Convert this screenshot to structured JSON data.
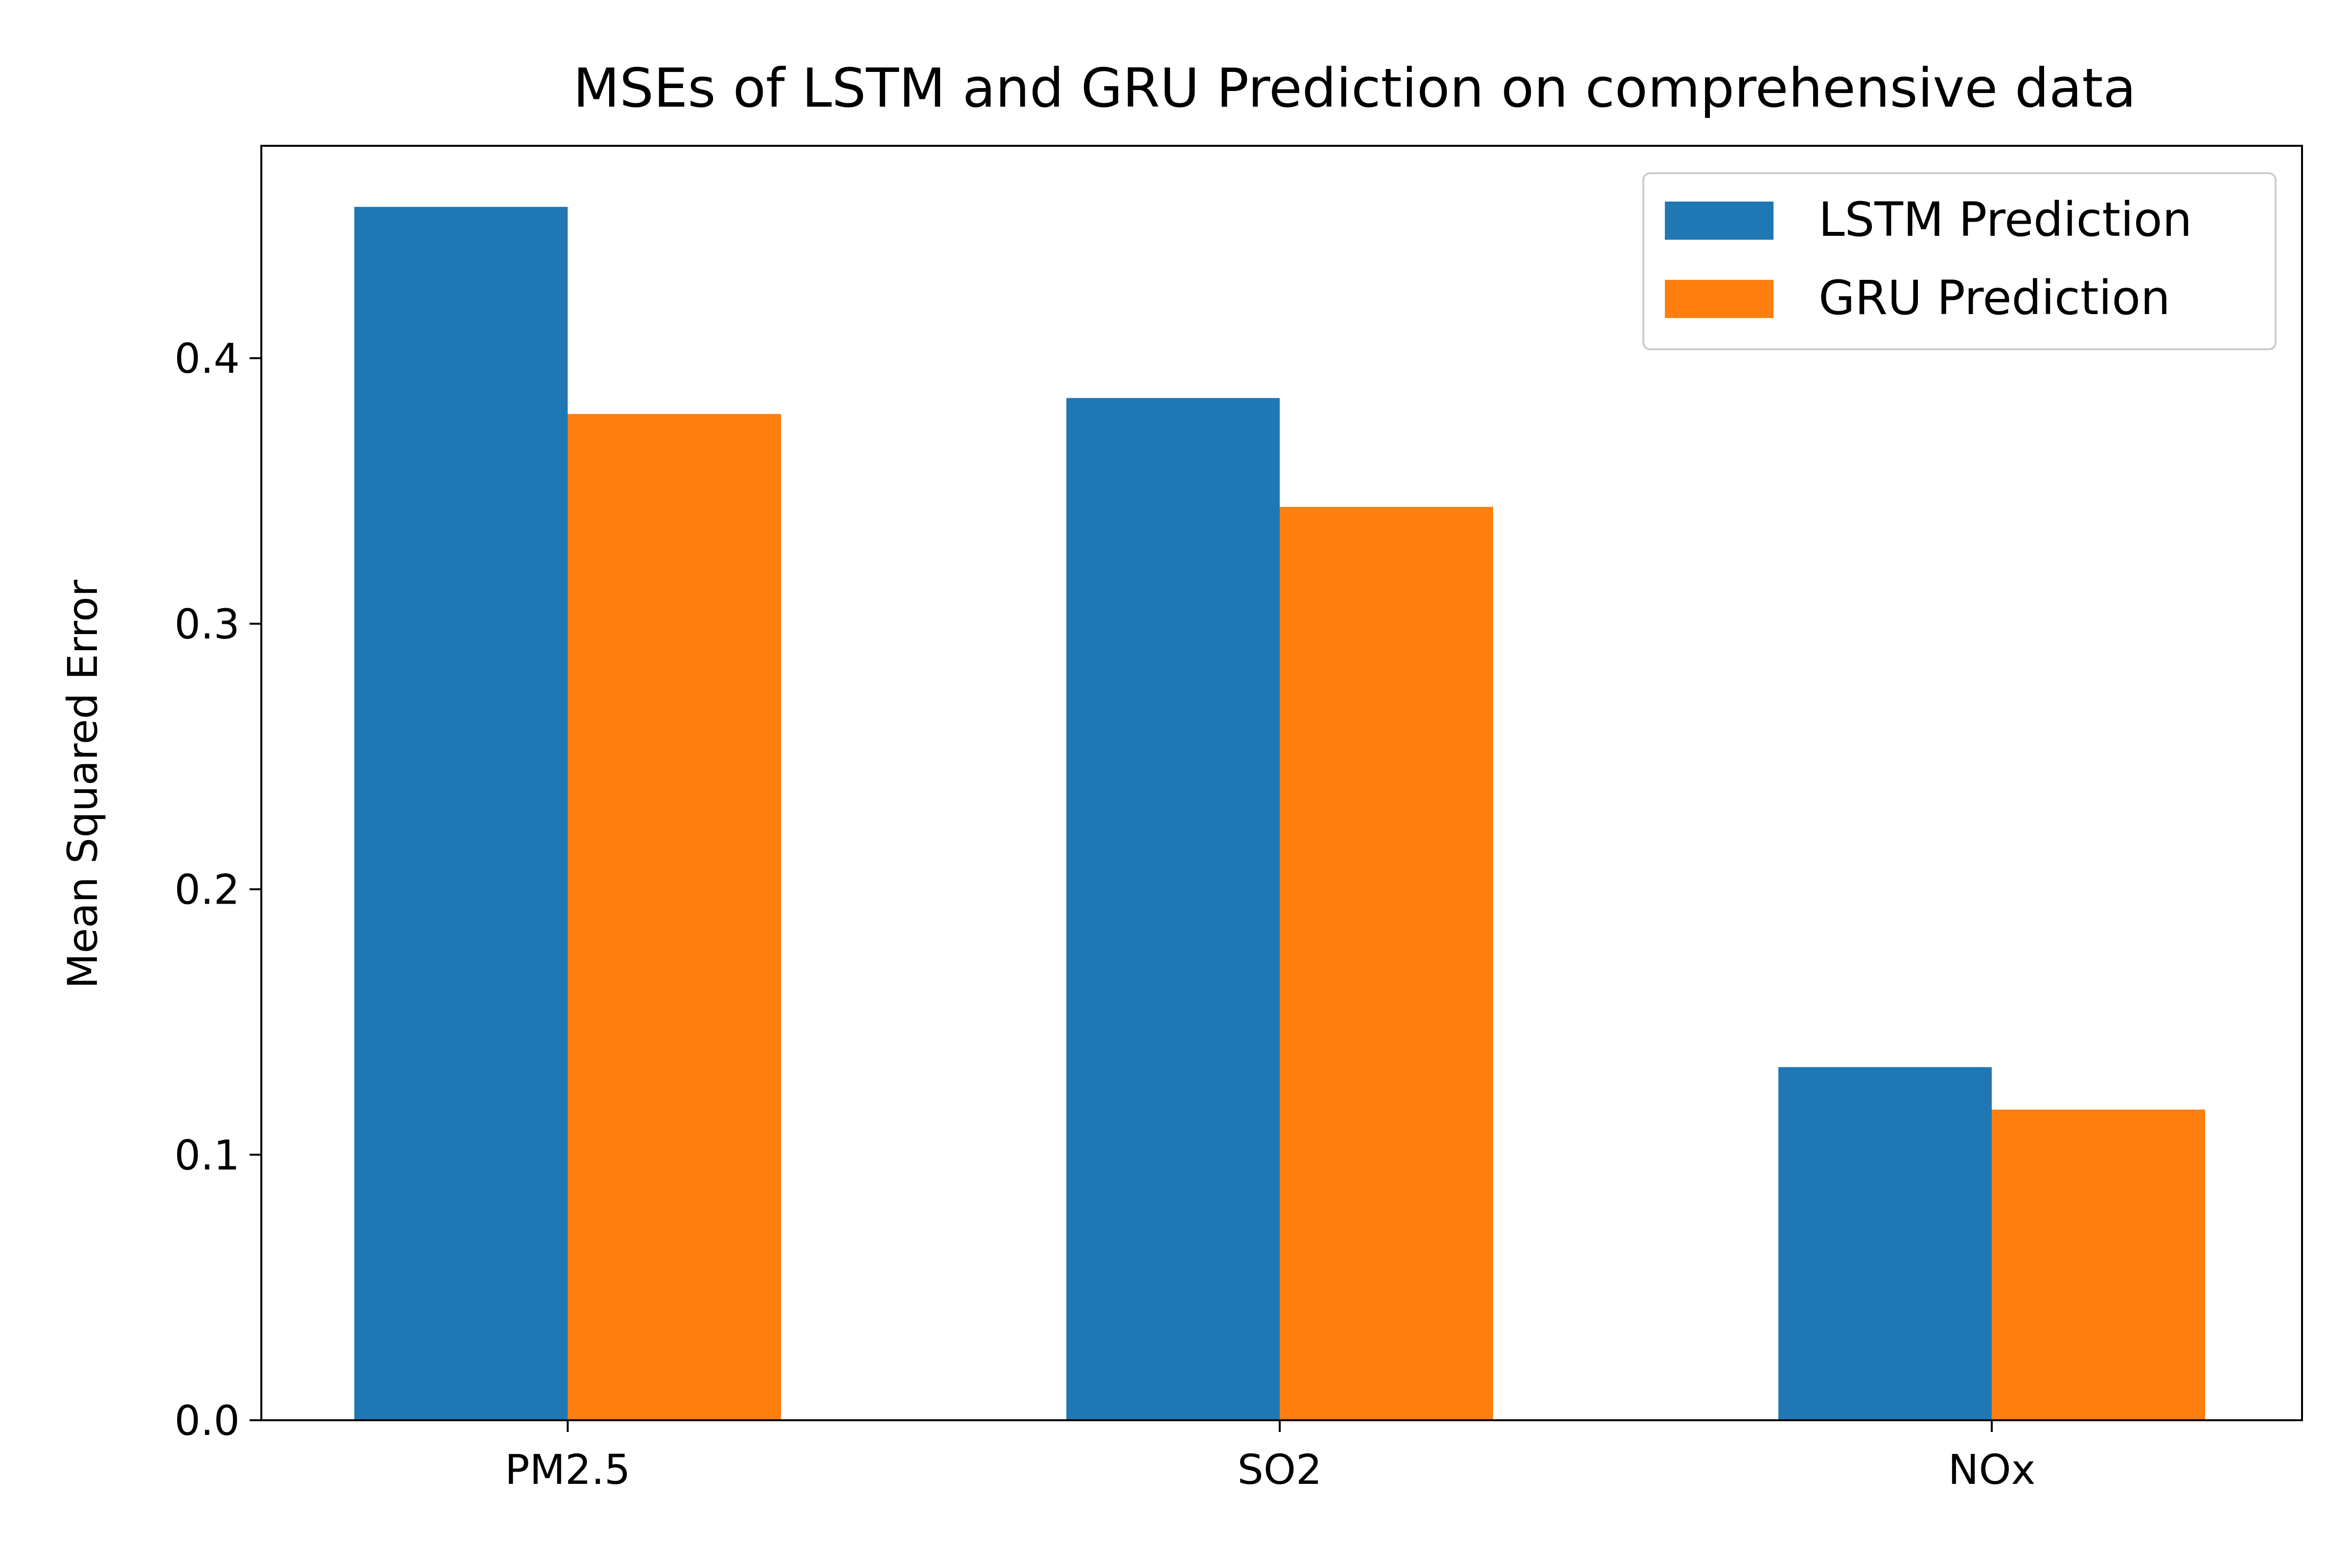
{
  "chart_data": {
    "type": "bar",
    "title": "MSEs of LSTM and GRU Prediction on comprehensive data",
    "xlabel": "",
    "ylabel": "Mean Squared Error",
    "categories": [
      "PM2.5",
      "SO2",
      "NOx"
    ],
    "series": [
      {
        "name": "LSTM Prediction",
        "color": "#1f77b4",
        "values": [
          0.457,
          0.385,
          0.133
        ]
      },
      {
        "name": "GRU Prediction",
        "color": "#ff7f0e",
        "values": [
          0.379,
          0.344,
          0.117
        ]
      }
    ],
    "yticks": [
      "0.0",
      "0.1",
      "0.2",
      "0.3",
      "0.4"
    ],
    "ylim": [
      0,
      0.48
    ],
    "grid": false,
    "legend": {
      "position": "top-right"
    }
  }
}
